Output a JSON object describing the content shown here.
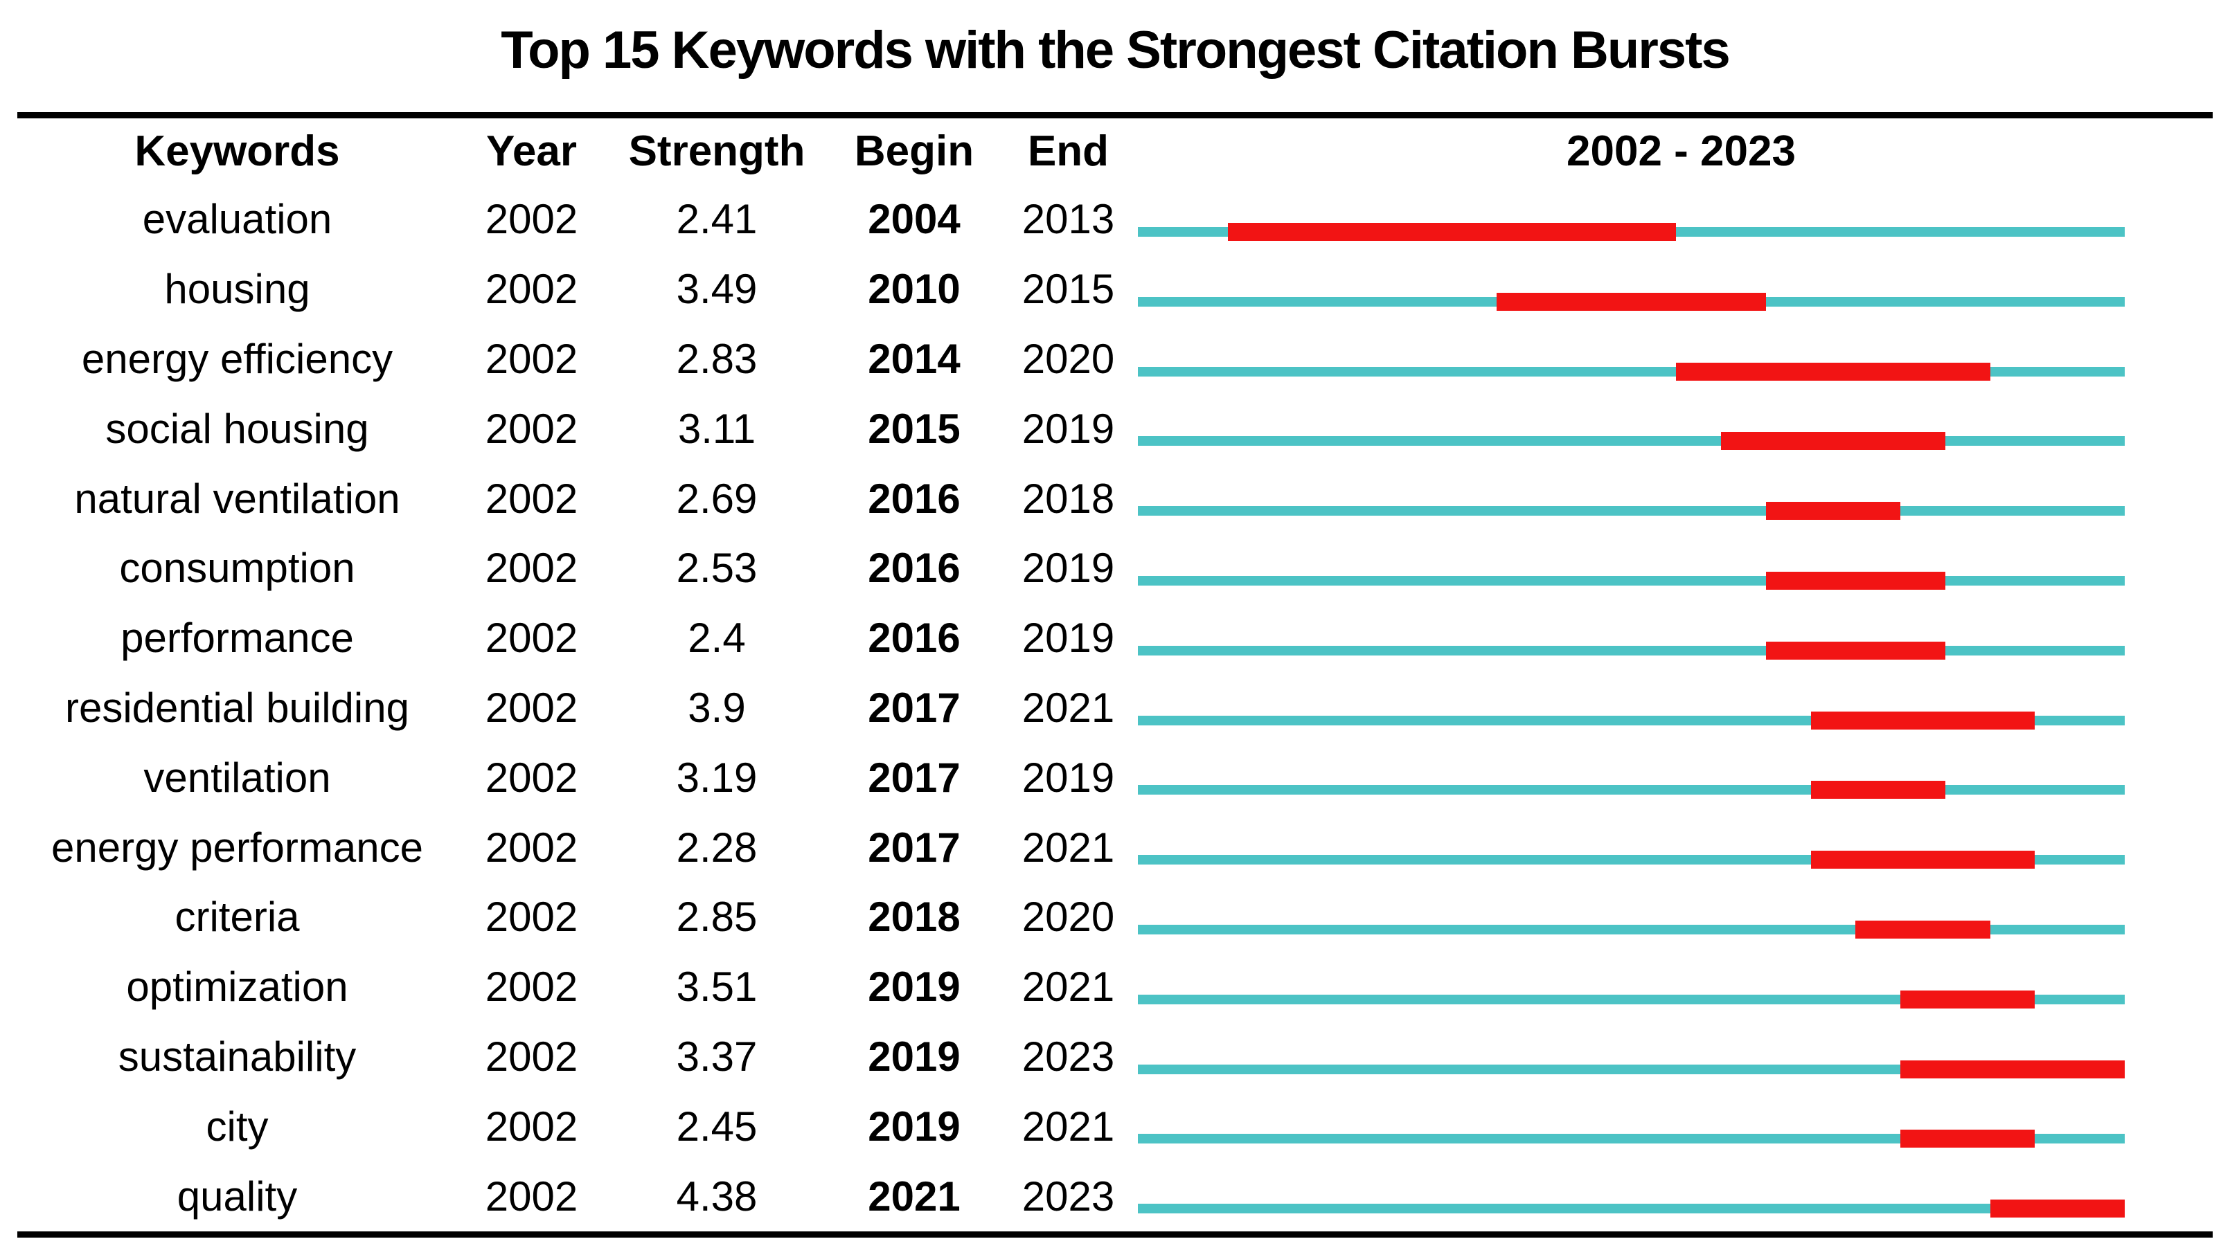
{
  "title": "Top 15 Keywords with the Strongest Citation Bursts",
  "header": {
    "keywords": "Keywords",
    "year": "Year",
    "strength": "Strength",
    "begin": "Begin",
    "end": "End",
    "period": "2002 - 2023"
  },
  "timeline": {
    "start_year": 2002,
    "end_year": 2023
  },
  "colors": {
    "track": "#4cc3c5",
    "burst": "#f21414",
    "rule": "#000000",
    "text": "#000000",
    "background": "#ffffff"
  },
  "rows": [
    {
      "keyword": "evaluation",
      "year": "2002",
      "strength": "2.41",
      "begin": "2004",
      "end": "2013"
    },
    {
      "keyword": "housing",
      "year": "2002",
      "strength": "3.49",
      "begin": "2010",
      "end": "2015"
    },
    {
      "keyword": "energy efficiency",
      "year": "2002",
      "strength": "2.83",
      "begin": "2014",
      "end": "2020"
    },
    {
      "keyword": "social housing",
      "year": "2002",
      "strength": "3.11",
      "begin": "2015",
      "end": "2019"
    },
    {
      "keyword": "natural ventilation",
      "year": "2002",
      "strength": "2.69",
      "begin": "2016",
      "end": "2018"
    },
    {
      "keyword": "consumption",
      "year": "2002",
      "strength": "2.53",
      "begin": "2016",
      "end": "2019"
    },
    {
      "keyword": "performance",
      "year": "2002",
      "strength": "2.4",
      "begin": "2016",
      "end": "2019"
    },
    {
      "keyword": "residential building",
      "year": "2002",
      "strength": "3.9",
      "begin": "2017",
      "end": "2021"
    },
    {
      "keyword": "ventilation",
      "year": "2002",
      "strength": "3.19",
      "begin": "2017",
      "end": "2019"
    },
    {
      "keyword": "energy performance",
      "year": "2002",
      "strength": "2.28",
      "begin": "2017",
      "end": "2021"
    },
    {
      "keyword": "criteria",
      "year": "2002",
      "strength": "2.85",
      "begin": "2018",
      "end": "2020"
    },
    {
      "keyword": "optimization",
      "year": "2002",
      "strength": "3.51",
      "begin": "2019",
      "end": "2021"
    },
    {
      "keyword": "sustainability",
      "year": "2002",
      "strength": "3.37",
      "begin": "2019",
      "end": "2023"
    },
    {
      "keyword": "city",
      "year": "2002",
      "strength": "2.45",
      "begin": "2019",
      "end": "2021"
    },
    {
      "keyword": "quality",
      "year": "2002",
      "strength": "4.38",
      "begin": "2021",
      "end": "2023"
    }
  ],
  "chart_data": {
    "type": "table",
    "title": "Top 15 Keywords with the Strongest Citation Bursts",
    "columns": [
      "Keywords",
      "Year",
      "Strength",
      "Begin",
      "End",
      "2002 - 2023"
    ],
    "timeline_range": [
      2002,
      2023
    ],
    "rows": [
      [
        "evaluation",
        2002,
        2.41,
        2004,
        2013
      ],
      [
        "housing",
        2002,
        3.49,
        2010,
        2015
      ],
      [
        "energy efficiency",
        2002,
        2.83,
        2014,
        2020
      ],
      [
        "social housing",
        2002,
        3.11,
        2015,
        2019
      ],
      [
        "natural ventilation",
        2002,
        2.69,
        2016,
        2018
      ],
      [
        "consumption",
        2002,
        2.53,
        2016,
        2019
      ],
      [
        "performance",
        2002,
        2.4,
        2016,
        2019
      ],
      [
        "residential building",
        2002,
        3.9,
        2017,
        2021
      ],
      [
        "ventilation",
        2002,
        3.19,
        2017,
        2019
      ],
      [
        "energy performance",
        2002,
        2.28,
        2017,
        2021
      ],
      [
        "criteria",
        2002,
        2.85,
        2018,
        2020
      ],
      [
        "optimization",
        2002,
        3.51,
        2019,
        2021
      ],
      [
        "sustainability",
        2002,
        3.37,
        2019,
        2023
      ],
      [
        "city",
        2002,
        2.45,
        2019,
        2021
      ],
      [
        "quality",
        2002,
        4.38,
        2021,
        2023
      ]
    ]
  }
}
